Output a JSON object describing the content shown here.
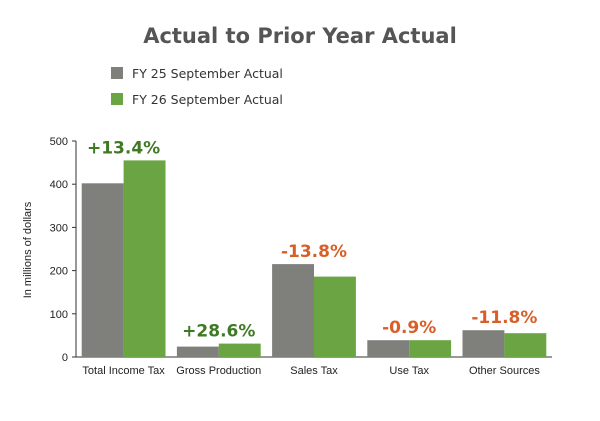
{
  "colors": {
    "series_fy25": "#7f7f7b",
    "series_fy26": "#6aa443",
    "positive": "#3f7a23",
    "negative": "#d95f2a",
    "axis": "#333333",
    "title": "#555555"
  },
  "chart_data": {
    "type": "bar",
    "title": "Actual to Prior Year Actual",
    "ylabel": "In millions of dollars",
    "xlabel": "",
    "ylim": [
      0,
      500
    ],
    "yticks": [
      "0",
      "100",
      "200",
      "300",
      "400",
      "500"
    ],
    "grid": false,
    "legend_position": "top-left",
    "categories": [
      "Total Income Tax",
      "Gross Production",
      "Sales Tax",
      "Use Tax",
      "Other Sources"
    ],
    "series": [
      {
        "name": "FY 25 September Actual",
        "values": [
          402,
          24,
          215,
          39,
          62
        ]
      },
      {
        "name": "FY 26 September Actual",
        "values": [
          455,
          31,
          186,
          39,
          55
        ]
      }
    ],
    "annotations": [
      {
        "text": "+13.4%",
        "sign": "positive"
      },
      {
        "text": "+28.6%",
        "sign": "positive"
      },
      {
        "text": "-13.8%",
        "sign": "negative"
      },
      {
        "text": "-0.9%",
        "sign": "negative"
      },
      {
        "text": "-11.8%",
        "sign": "negative"
      }
    ]
  }
}
